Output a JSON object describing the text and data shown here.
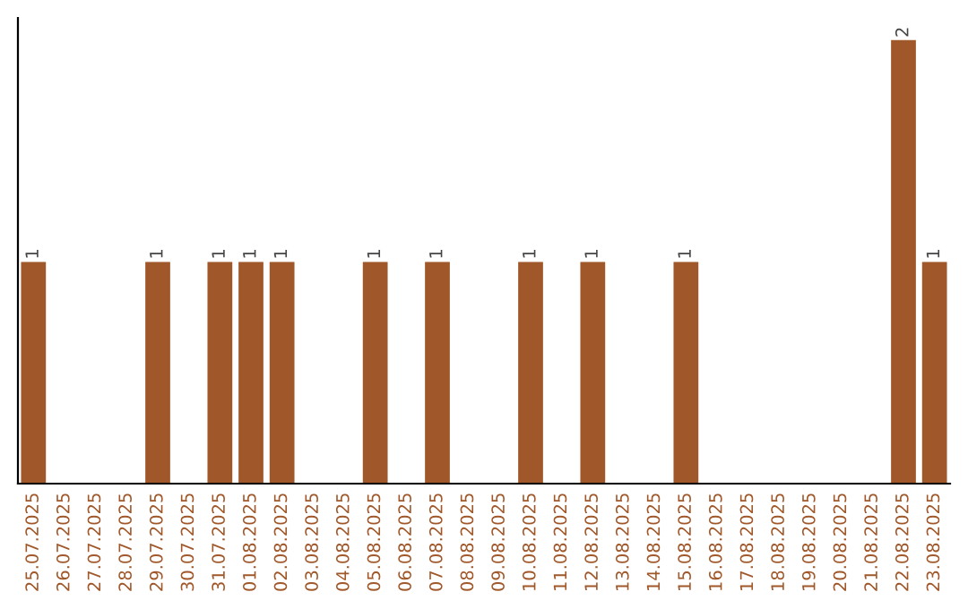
{
  "chart_data": {
    "type": "bar",
    "categories": [
      "25.07.2025",
      "26.07.2025",
      "27.07.2025",
      "28.07.2025",
      "29.07.2025",
      "30.07.2025",
      "31.07.2025",
      "01.08.2025",
      "02.08.2025",
      "03.08.2025",
      "04.08.2025",
      "05.08.2025",
      "06.08.2025",
      "07.08.2025",
      "08.08.2025",
      "09.08.2025",
      "10.08.2025",
      "11.08.2025",
      "12.08.2025",
      "13.08.2025",
      "14.08.2025",
      "15.08.2025",
      "16.08.2025",
      "17.08.2025",
      "18.08.2025",
      "19.08.2025",
      "20.08.2025",
      "21.08.2025",
      "22.08.2025",
      "23.08.2025"
    ],
    "values": [
      1,
      0,
      0,
      0,
      1,
      0,
      1,
      1,
      1,
      0,
      0,
      1,
      0,
      1,
      0,
      0,
      1,
      0,
      1,
      0,
      0,
      1,
      0,
      0,
      0,
      0,
      0,
      0,
      2,
      1
    ],
    "value_labels": [
      "1",
      null,
      null,
      null,
      "1",
      null,
      "1",
      "1",
      "1",
      null,
      null,
      "1",
      null,
      "1",
      null,
      null,
      "1",
      null,
      "1",
      null,
      null,
      "1",
      null,
      null,
      null,
      null,
      null,
      null,
      "2",
      "1"
    ],
    "color": "#a0582a",
    "tick_labels": "x",
    "grid": false,
    "legend": false
  }
}
